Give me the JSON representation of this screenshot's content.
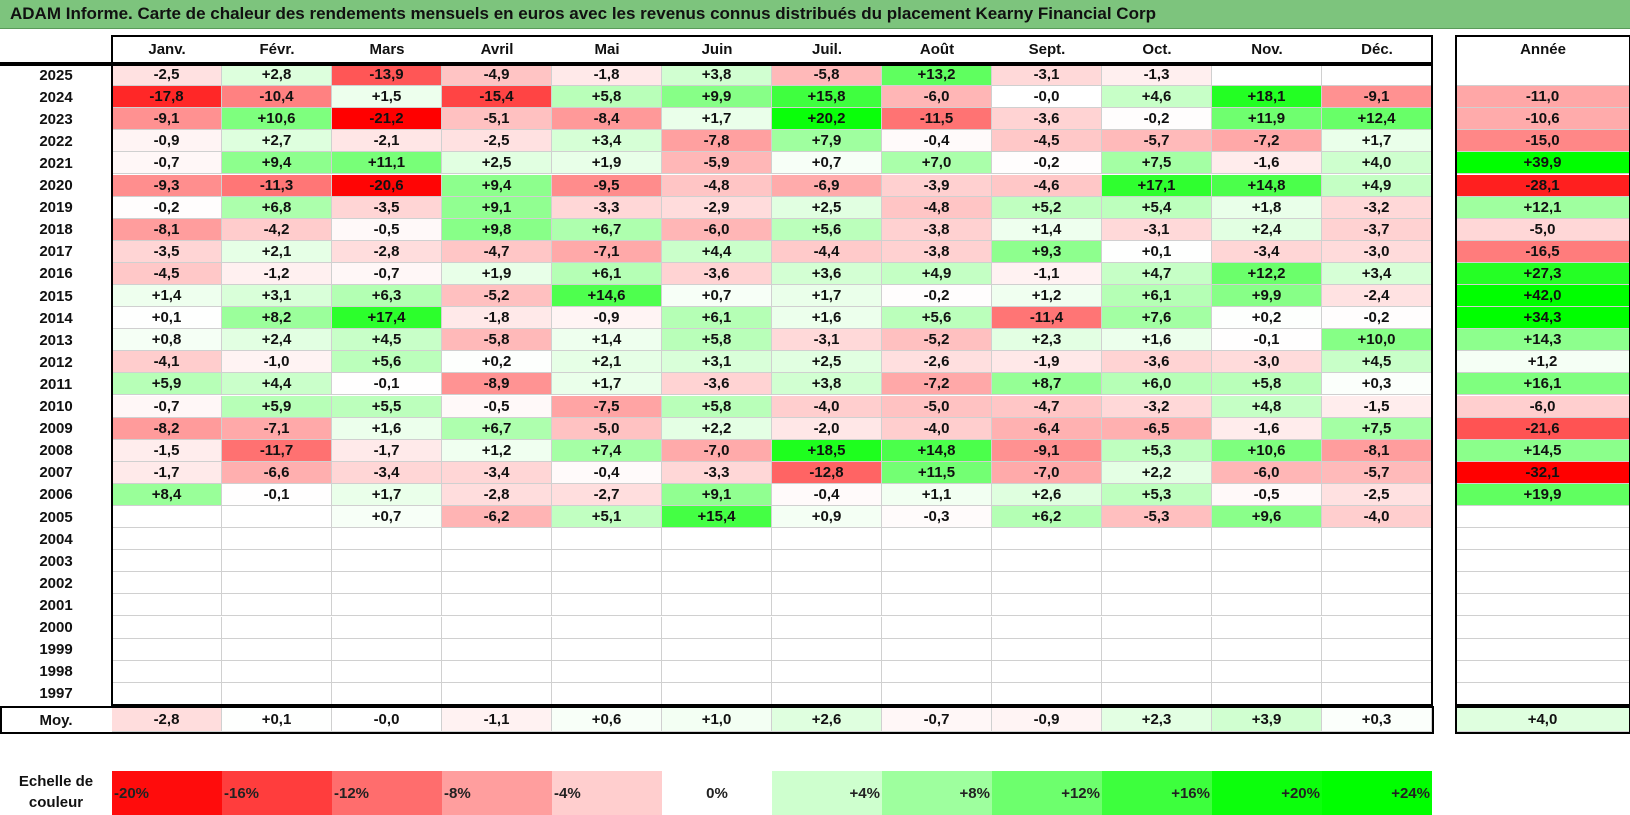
{
  "title": "ADAM Informe. Carte de chaleur des rendements mensuels en euros avec les revenus connus distribués du placement Kearny Financial Corp",
  "chart_data": {
    "type": "heatmap",
    "months": [
      "Janv.",
      "Févr.",
      "Mars",
      "Avril",
      "Mai",
      "Juin",
      "Juil.",
      "Août",
      "Sept.",
      "Oct.",
      "Nov.",
      "Déc."
    ],
    "annual_header": "Année",
    "years": [
      "2025",
      "2024",
      "2023",
      "2022",
      "2021",
      "2020",
      "2019",
      "2018",
      "2017",
      "2016",
      "2015",
      "2014",
      "2013",
      "2012",
      "2011",
      "2010",
      "2009",
      "2008",
      "2007",
      "2006",
      "2005",
      "2004",
      "2003",
      "2002",
      "2001",
      "2000",
      "1999",
      "1998",
      "1997"
    ],
    "values": [
      [
        "-2,5",
        "+2,8",
        "-13,9",
        "-4,9",
        "-1,8",
        "+3,8",
        "-5,8",
        "+13,2",
        "-3,1",
        "-1,3",
        "",
        ""
      ],
      [
        "-17,8",
        "-10,4",
        "+1,5",
        "-15,4",
        "+5,8",
        "+9,9",
        "+15,8",
        "-6,0",
        "-0,0",
        "+4,6",
        "+18,1",
        "-9,1"
      ],
      [
        "-9,1",
        "+10,6",
        "-21,2",
        "-5,1",
        "-8,4",
        "+1,7",
        "+20,2",
        "-11,5",
        "-3,6",
        "-0,2",
        "+11,9",
        "+12,4"
      ],
      [
        "-0,9",
        "+2,7",
        "-2,1",
        "-2,5",
        "+3,4",
        "-7,8",
        "+7,9",
        "-0,4",
        "-4,5",
        "-5,7",
        "-7,2",
        "+1,7"
      ],
      [
        "-0,7",
        "+9,4",
        "+11,1",
        "+2,5",
        "+1,9",
        "-5,9",
        "+0,7",
        "+7,0",
        "-0,2",
        "+7,5",
        "-1,6",
        "+4,0"
      ],
      [
        "-9,3",
        "-11,3",
        "-20,6",
        "+9,4",
        "-9,5",
        "-4,8",
        "-6,9",
        "-3,9",
        "-4,6",
        "+17,1",
        "+14,8",
        "+4,9"
      ],
      [
        "-0,2",
        "+6,8",
        "-3,5",
        "+9,1",
        "-3,3",
        "-2,9",
        "+2,5",
        "-4,8",
        "+5,2",
        "+5,4",
        "+1,8",
        "-3,2"
      ],
      [
        "-8,1",
        "-4,2",
        "-0,5",
        "+9,8",
        "+6,7",
        "-6,0",
        "+5,6",
        "-3,8",
        "+1,4",
        "-3,1",
        "+2,4",
        "-3,7"
      ],
      [
        "-3,5",
        "+2,1",
        "-2,8",
        "-4,7",
        "-7,1",
        "+4,4",
        "-4,4",
        "-3,8",
        "+9,3",
        "+0,1",
        "-3,4",
        "-3,0"
      ],
      [
        "-4,5",
        "-1,2",
        "-0,7",
        "+1,9",
        "+6,1",
        "-3,6",
        "+3,6",
        "+4,9",
        "-1,1",
        "+4,7",
        "+12,2",
        "+3,4"
      ],
      [
        "+1,4",
        "+3,1",
        "+6,3",
        "-5,2",
        "+14,6",
        "+0,7",
        "+1,7",
        "-0,2",
        "+1,2",
        "+6,1",
        "+9,9",
        "-2,4"
      ],
      [
        "+0,1",
        "+8,2",
        "+17,4",
        "-1,8",
        "-0,9",
        "+6,1",
        "+1,6",
        "+5,6",
        "-11,4",
        "+7,6",
        "+0,2",
        "-0,2"
      ],
      [
        "+0,8",
        "+2,4",
        "+4,5",
        "-5,8",
        "+1,4",
        "+5,8",
        "-3,1",
        "-5,2",
        "+2,3",
        "+1,6",
        "-0,1",
        "+10,0"
      ],
      [
        "-4,1",
        "-1,0",
        "+5,6",
        "+0,2",
        "+2,1",
        "+3,1",
        "+2,5",
        "-2,6",
        "-1,9",
        "-3,6",
        "-3,0",
        "+4,5"
      ],
      [
        "+5,9",
        "+4,4",
        "-0,1",
        "-8,9",
        "+1,7",
        "-3,6",
        "+3,8",
        "-7,2",
        "+8,7",
        "+6,0",
        "+5,8",
        "+0,3"
      ],
      [
        "-0,7",
        "+5,9",
        "+5,5",
        "-0,5",
        "-7,5",
        "+5,8",
        "-4,0",
        "-5,0",
        "-4,7",
        "-3,2",
        "+4,8",
        "-1,5"
      ],
      [
        "-8,2",
        "-7,1",
        "+1,6",
        "+6,7",
        "-5,0",
        "+2,2",
        "-2,0",
        "-4,0",
        "-6,4",
        "-6,5",
        "-1,6",
        "+7,5"
      ],
      [
        "-1,5",
        "-11,7",
        "-1,7",
        "+1,2",
        "+7,4",
        "-7,0",
        "+18,5",
        "+14,8",
        "-9,1",
        "+5,3",
        "+10,6",
        "-8,1"
      ],
      [
        "-1,7",
        "-6,6",
        "-3,4",
        "-3,4",
        "-0,4",
        "-3,3",
        "-12,8",
        "+11,5",
        "-7,0",
        "+2,2",
        "-6,0",
        "-5,7"
      ],
      [
        "+8,4",
        "-0,1",
        "+1,7",
        "-2,8",
        "-2,7",
        "+9,1",
        "-0,4",
        "+1,1",
        "+2,6",
        "+5,3",
        "-0,5",
        "-2,5"
      ],
      [
        "",
        "",
        "+0,7",
        "-6,2",
        "+5,1",
        "+15,4",
        "+0,9",
        "-0,3",
        "+6,2",
        "-5,3",
        "+9,6",
        "-4,0"
      ],
      [
        "",
        "",
        "",
        "",
        "",
        "",
        "",
        "",
        "",
        "",
        "",
        ""
      ],
      [
        "",
        "",
        "",
        "",
        "",
        "",
        "",
        "",
        "",
        "",
        "",
        ""
      ],
      [
        "",
        "",
        "",
        "",
        "",
        "",
        "",
        "",
        "",
        "",
        "",
        ""
      ],
      [
        "",
        "",
        "",
        "",
        "",
        "",
        "",
        "",
        "",
        "",
        "",
        ""
      ],
      [
        "",
        "",
        "",
        "",
        "",
        "",
        "",
        "",
        "",
        "",
        "",
        ""
      ],
      [
        "",
        "",
        "",
        "",
        "",
        "",
        "",
        "",
        "",
        "",
        "",
        ""
      ],
      [
        "",
        "",
        "",
        "",
        "",
        "",
        "",
        "",
        "",
        "",
        "",
        ""
      ],
      [
        "",
        "",
        "",
        "",
        "",
        "",
        "",
        "",
        "",
        "",
        "",
        ""
      ]
    ],
    "annual": [
      "",
      "-11,0",
      "-10,6",
      "-15,0",
      "+39,9",
      "-28,1",
      "+12,1",
      "-5,0",
      "-16,5",
      "+27,3",
      "+42,0",
      "+34,3",
      "+14,3",
      "+1,2",
      "+16,1",
      "-6,0",
      "-21,6",
      "+14,5",
      "-32,1",
      "+19,9",
      "",
      "",
      "",
      "",
      "",
      "",
      "",
      "",
      ""
    ],
    "average_label": "Moy.",
    "average": [
      "-2,8",
      "+0,1",
      "-0,0",
      "-1,1",
      "+0,6",
      "+1,0",
      "+2,6",
      "-0,7",
      "-0,9",
      "+2,3",
      "+3,9",
      "+0,3"
    ],
    "average_annual": "+4,0",
    "scale_label": "Echelle de couleur",
    "scale": [
      "-20%",
      "-16%",
      "-12%",
      "-8%",
      "-4%",
      "0%",
      "+4%",
      "+8%",
      "+12%",
      "+16%",
      "+20%",
      "+24%"
    ],
    "colors": {
      "negative": "#ff0000",
      "positive": "#00ff00",
      "neutral": "#ffffff"
    }
  }
}
